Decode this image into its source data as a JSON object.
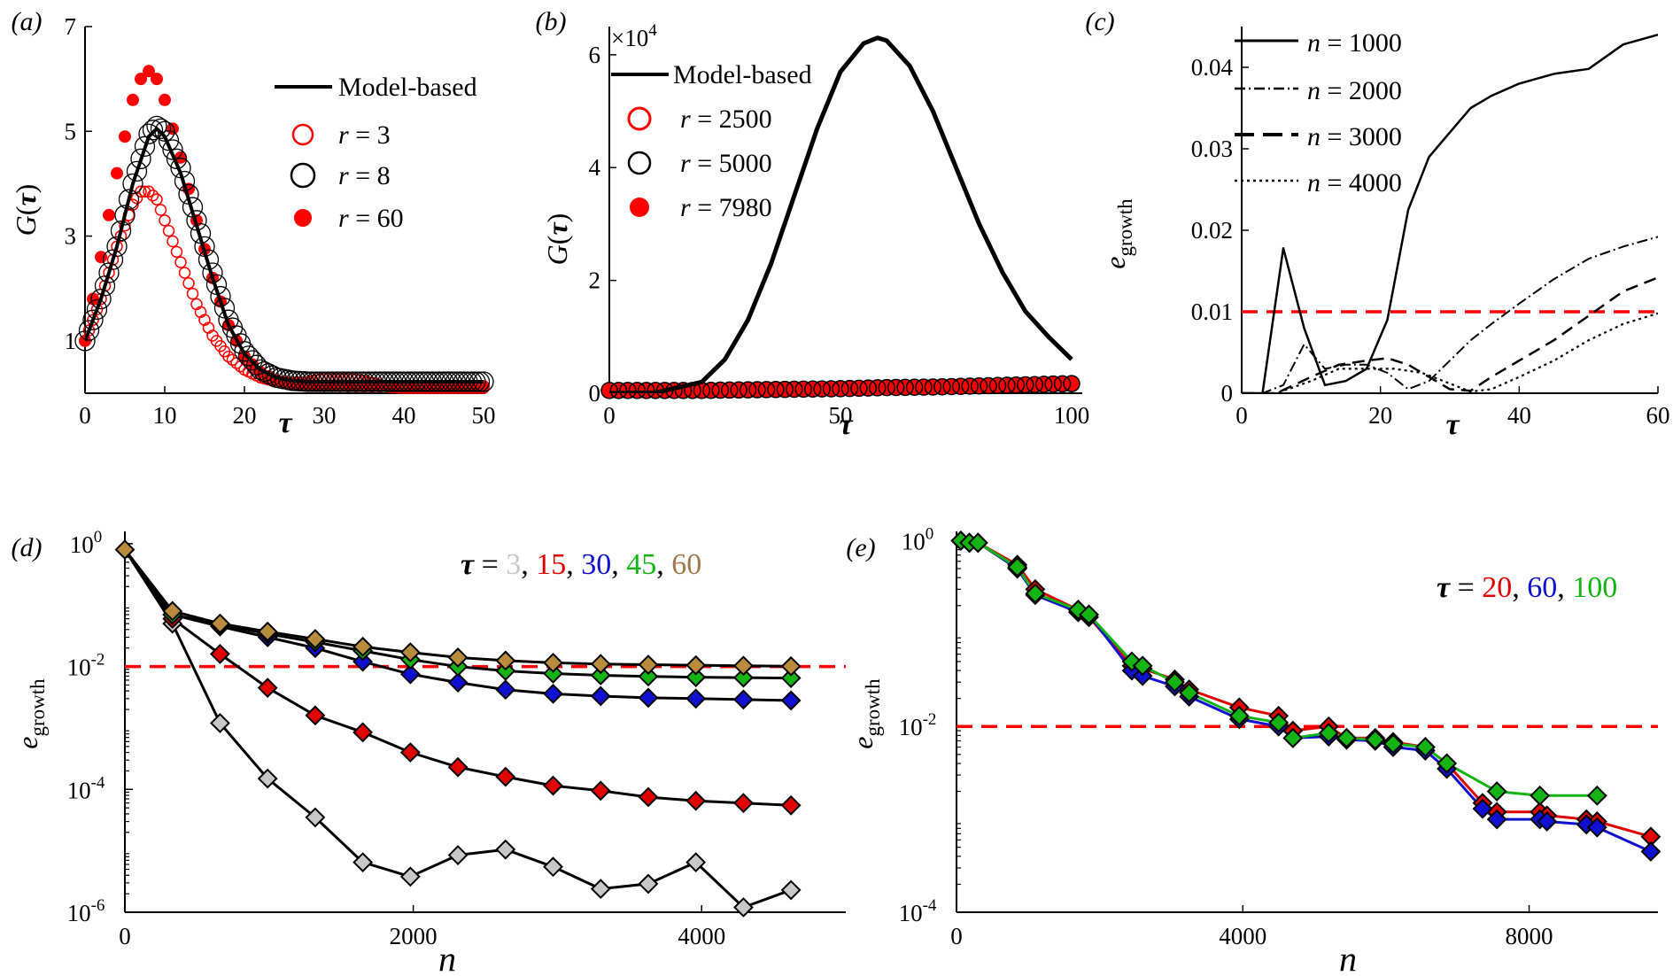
{
  "colors": {
    "black": "#000000",
    "red": "#ff0000",
    "grey": "#c8c8c8",
    "dred": "#e00000",
    "blue": "#1010d0",
    "green": "#14b414",
    "gold": "#b88c3c",
    "tau_gold_label": "#a0784b"
  },
  "chart_data": [
    {
      "id": "a",
      "type": "line",
      "panel_label": "(a)",
      "xlabel": "τ",
      "ylabel": "G(τ)",
      "xlim": [
        0,
        50
      ],
      "ylim": [
        0,
        7
      ],
      "xticks": [
        0,
        10,
        20,
        30,
        40,
        50
      ],
      "xtick_labels": [
        "0",
        "10",
        "20",
        "30",
        "40",
        "50"
      ],
      "yticks": [
        1,
        3,
        5,
        7
      ],
      "ytick_labels": [
        "1",
        "3",
        "5",
        "7"
      ],
      "legend": [
        "Model-based",
        "r = 3",
        "r = 8",
        "r = 60"
      ],
      "series": [
        {
          "name": "Model-based",
          "style": "line",
          "x": [
            0,
            2,
            4,
            6,
            8,
            9,
            10,
            12,
            14,
            16,
            18,
            20,
            22,
            24,
            26,
            28,
            30,
            35,
            40,
            45,
            50
          ],
          "values": [
            1.0,
            1.8,
            2.8,
            4.0,
            4.9,
            5.05,
            4.9,
            4.2,
            3.2,
            2.2,
            1.3,
            0.75,
            0.45,
            0.3,
            0.24,
            0.22,
            0.22,
            0.22,
            0.22,
            0.22,
            0.22
          ]
        },
        {
          "name": "r = 3",
          "style": "open-red",
          "x": [
            0,
            2,
            4,
            6,
            7,
            8,
            9,
            10,
            12,
            14,
            16,
            18,
            20,
            22,
            24,
            26,
            28,
            30,
            32,
            34,
            36,
            38,
            40,
            45,
            50
          ],
          "values": [
            1.0,
            1.8,
            2.8,
            3.6,
            3.85,
            3.85,
            3.7,
            3.3,
            2.5,
            1.7,
            1.1,
            0.7,
            0.45,
            0.3,
            0.22,
            0.2,
            0.22,
            0.28,
            0.3,
            0.27,
            0.2,
            0.12,
            0.1,
            0.1,
            0.1
          ]
        },
        {
          "name": "r = 8",
          "style": "open-black",
          "x": [
            0,
            2,
            4,
            6,
            8,
            9,
            10,
            12,
            14,
            16,
            18,
            20,
            22,
            24,
            26,
            28,
            30,
            35,
            40,
            45,
            50
          ],
          "values": [
            1.0,
            1.8,
            2.8,
            4.0,
            4.95,
            5.1,
            5.0,
            4.3,
            3.3,
            2.3,
            1.4,
            0.8,
            0.45,
            0.3,
            0.24,
            0.22,
            0.22,
            0.22,
            0.22,
            0.22,
            0.22
          ]
        },
        {
          "name": "r = 60",
          "style": "filled-red",
          "x": [
            0,
            2,
            4,
            6,
            7,
            8,
            9,
            10,
            12,
            14,
            16,
            18,
            20,
            22,
            24,
            26,
            28,
            30,
            35,
            40,
            45,
            50
          ],
          "values": [
            1.0,
            2.6,
            4.2,
            5.6,
            6.0,
            6.15,
            6.0,
            5.6,
            4.5,
            3.3,
            2.2,
            1.3,
            0.7,
            0.4,
            0.25,
            0.18,
            0.15,
            0.14,
            0.13,
            0.13,
            0.13,
            0.13
          ]
        }
      ]
    },
    {
      "id": "b",
      "type": "line",
      "panel_label": "(b)",
      "xlabel": "τ",
      "ylabel": "G(τ)",
      "exponent_label": "×10",
      "exponent_power": "4",
      "xlim": [
        0,
        100
      ],
      "ylim": [
        0,
        6.5
      ],
      "xticks": [
        0,
        50,
        100
      ],
      "xtick_labels": [
        "0",
        "50",
        "100"
      ],
      "yticks": [
        0,
        2,
        4,
        6
      ],
      "ytick_labels": [
        "0",
        "2",
        "4",
        "6"
      ],
      "legend": [
        "Model-based",
        "r = 2500",
        "r = 5000",
        "r = 7980"
      ],
      "series": [
        {
          "name": "Model-based",
          "style": "line",
          "x": [
            0,
            10,
            20,
            25,
            30,
            35,
            40,
            45,
            50,
            55,
            58,
            60,
            65,
            70,
            75,
            80,
            85,
            90,
            95,
            100
          ],
          "values": [
            0.0,
            0.01,
            0.2,
            0.6,
            1.3,
            2.3,
            3.5,
            4.7,
            5.7,
            6.2,
            6.3,
            6.25,
            5.8,
            5.0,
            4.0,
            3.0,
            2.15,
            1.45,
            1.0,
            0.6
          ]
        },
        {
          "name": "r = 2500",
          "style": "open-red",
          "x": [
            0,
            10,
            20,
            30,
            40,
            50,
            60,
            70,
            80,
            90,
            100
          ],
          "values": [
            0.05,
            0.05,
            0.05,
            0.06,
            0.07,
            0.08,
            0.1,
            0.11,
            0.13,
            0.15,
            0.17
          ]
        },
        {
          "name": "r = 5000",
          "style": "open-black",
          "x": [
            0,
            10,
            20,
            30,
            40,
            50,
            60,
            70,
            80,
            90,
            100
          ],
          "values": [
            0.05,
            0.05,
            0.05,
            0.06,
            0.07,
            0.08,
            0.1,
            0.11,
            0.13,
            0.15,
            0.17
          ]
        },
        {
          "name": "r = 7980",
          "style": "filled-red",
          "x": [
            0,
            10,
            20,
            30,
            40,
            50,
            60,
            70,
            80,
            90,
            100
          ],
          "values": [
            0.05,
            0.05,
            0.05,
            0.06,
            0.07,
            0.08,
            0.1,
            0.11,
            0.13,
            0.15,
            0.17
          ]
        }
      ]
    },
    {
      "id": "c",
      "type": "line",
      "panel_label": "(c)",
      "xlabel": "τ",
      "ylabel_main": "e",
      "ylabel_sub": "growth",
      "xlim": [
        0,
        60
      ],
      "ylim": [
        0,
        0.045
      ],
      "xticks": [
        0,
        20,
        40,
        60
      ],
      "xtick_labels": [
        "0",
        "20",
        "40",
        "60"
      ],
      "yticks": [
        0,
        0.01,
        0.02,
        0.03,
        0.04
      ],
      "ytick_labels": [
        "0",
        "0.01",
        "0.02",
        "0.03",
        "0.04"
      ],
      "threshold": 0.01,
      "legend": [
        "n = 1000",
        "n = 2000",
        "n = 3000",
        "n = 4000"
      ],
      "series": [
        {
          "name": "n = 1000",
          "dash": "solid",
          "x": [
            0,
            3,
            6,
            9,
            12,
            15,
            18,
            21,
            24,
            27,
            30,
            33,
            36,
            40,
            45,
            50,
            55,
            60
          ],
          "values": [
            0,
            0,
            0.0178,
            0.008,
            0.001,
            0.0015,
            0.003,
            0.009,
            0.0225,
            0.029,
            0.032,
            0.035,
            0.0365,
            0.038,
            0.0392,
            0.0398,
            0.0428,
            0.044
          ]
        },
        {
          "name": "n = 2000",
          "dash": "dashdot",
          "x": [
            0,
            3,
            6,
            9,
            12,
            15,
            18,
            21,
            24,
            27,
            30,
            33,
            36,
            40,
            45,
            50,
            55,
            60
          ],
          "values": [
            0,
            0,
            0.001,
            0.006,
            0.003,
            0.0035,
            0.0035,
            0.0025,
            0.0005,
            0.0015,
            0.004,
            0.0065,
            0.0085,
            0.011,
            0.014,
            0.0165,
            0.018,
            0.0192
          ]
        },
        {
          "name": "n = 3000",
          "dash": "dashed",
          "x": [
            0,
            5,
            10,
            14,
            18,
            21,
            24,
            27,
            30,
            33,
            36,
            40,
            45,
            50,
            55,
            60
          ],
          "values": [
            0,
            0,
            0.002,
            0.0035,
            0.004,
            0.0043,
            0.0035,
            0.002,
            0.0005,
            0.0003,
            0.002,
            0.004,
            0.0065,
            0.0095,
            0.0125,
            0.0142
          ]
        },
        {
          "name": "n = 4000",
          "dash": "dotted",
          "x": [
            0,
            5,
            10,
            14,
            18,
            22,
            26,
            30,
            33,
            36,
            40,
            45,
            50,
            55,
            60
          ],
          "values": [
            0,
            0,
            0.0015,
            0.003,
            0.003,
            0.003,
            0.0025,
            0.0012,
            0.0002,
            0.0005,
            0.002,
            0.004,
            0.0065,
            0.0085,
            0.0098
          ]
        }
      ]
    },
    {
      "id": "d",
      "type": "line",
      "panel_label": "(d)",
      "xlabel": "n",
      "ylabel_main": "e",
      "ylabel_sub": "growth",
      "xlim": [
        0,
        5000
      ],
      "ylog": true,
      "ylim_exp": [
        -6,
        0.2
      ],
      "xticks": [
        0,
        2000,
        4000
      ],
      "xtick_labels": [
        "0",
        "2000",
        "4000"
      ],
      "yticks_exp": [
        0,
        -2,
        -4,
        -6
      ],
      "ytick_base": "10",
      "ytick_exps": [
        "0",
        "-2",
        "-4",
        "-6"
      ],
      "threshold": 0.01,
      "annotation": {
        "prefix": "τ = ",
        "parts": [
          "3",
          ", ",
          "15",
          ", ",
          "30",
          ", ",
          "45",
          ", ",
          "60"
        ]
      },
      "series": [
        {
          "name": "τ = 3",
          "color_key": "grey",
          "x": [
            0,
            330,
            660,
            990,
            1320,
            1650,
            1980,
            2310,
            2640,
            2970,
            3300,
            3630,
            3960,
            4290,
            4620
          ],
          "values": [
            0.8,
            0.05,
            0.0012,
            0.00015,
            3.5e-05,
            6.5e-06,
            3.8e-06,
            8.5e-06,
            1.05e-05,
            5.5e-06,
            2.4e-06,
            2.9e-06,
            6.5e-06,
            1.2e-06,
            2.3e-06
          ]
        },
        {
          "name": "τ = 15",
          "color_key": "dred",
          "x": [
            0,
            330,
            660,
            990,
            1320,
            1650,
            1980,
            2310,
            2640,
            2970,
            3300,
            3630,
            3960,
            4290,
            4620
          ],
          "values": [
            0.8,
            0.06,
            0.016,
            0.0045,
            0.0016,
            0.00085,
            0.0004,
            0.00023,
            0.00016,
            0.000115,
            9.5e-05,
            7.5e-05,
            6.5e-05,
            6e-05,
            5.5e-05
          ]
        },
        {
          "name": "τ = 30",
          "color_key": "blue",
          "x": [
            0,
            330,
            660,
            990,
            1320,
            1650,
            1980,
            2310,
            2640,
            2970,
            3300,
            3630,
            3960,
            4290,
            4620
          ],
          "values": [
            0.8,
            0.07,
            0.045,
            0.03,
            0.02,
            0.012,
            0.0075,
            0.0055,
            0.0042,
            0.0036,
            0.0033,
            0.0031,
            0.003,
            0.0029,
            0.0028
          ]
        },
        {
          "name": "τ = 45",
          "color_key": "green",
          "x": [
            0,
            330,
            660,
            990,
            1320,
            1650,
            1980,
            2310,
            2640,
            2970,
            3300,
            3630,
            3960,
            4290,
            4620
          ],
          "values": [
            0.8,
            0.07,
            0.048,
            0.034,
            0.025,
            0.018,
            0.013,
            0.01,
            0.0085,
            0.0077,
            0.0072,
            0.0069,
            0.0067,
            0.0066,
            0.0065
          ]
        },
        {
          "name": "τ = 60",
          "color_key": "gold",
          "x": [
            0,
            330,
            660,
            990,
            1320,
            1650,
            1980,
            2310,
            2640,
            2970,
            3300,
            3630,
            3960,
            4290,
            4620
          ],
          "values": [
            0.8,
            0.08,
            0.05,
            0.037,
            0.028,
            0.021,
            0.017,
            0.014,
            0.0125,
            0.0115,
            0.011,
            0.0107,
            0.0105,
            0.0103,
            0.0101
          ]
        }
      ]
    },
    {
      "id": "e",
      "type": "line",
      "panel_label": "(e)",
      "xlabel": "n",
      "ylabel_main": "e",
      "ylabel_sub": "growth",
      "xlim": [
        0,
        9800
      ],
      "ylog": true,
      "ylim_exp": [
        -4,
        0.1
      ],
      "xticks": [
        0,
        4000,
        8000
      ],
      "xtick_labels": [
        "0",
        "4000",
        "8000"
      ],
      "yticks_exp": [
        0,
        -2,
        -4
      ],
      "ytick_base": "10",
      "ytick_exps": [
        "0",
        "-2",
        "-4"
      ],
      "threshold": 0.01,
      "annotation": {
        "prefix": "τ = ",
        "parts": [
          "20",
          ", ",
          "60",
          ", ",
          "100"
        ]
      },
      "series": [
        {
          "name": "τ = 20",
          "color_key": "dred",
          "x": [
            60,
            180,
            300,
            850,
            1100,
            1700,
            1850,
            2450,
            2600,
            3050,
            3250,
            3950,
            4500,
            4700,
            5200,
            5450,
            5850,
            6100,
            6550,
            6850,
            7350,
            7550,
            8150,
            8250,
            8800,
            8950,
            9700
          ],
          "values": [
            1.0,
            0.95,
            0.95,
            0.55,
            0.3,
            0.18,
            0.15,
            0.045,
            0.042,
            0.032,
            0.025,
            0.016,
            0.013,
            0.009,
            0.01,
            0.0075,
            0.0075,
            0.0068,
            0.006,
            0.004,
            0.0015,
            0.0012,
            0.0012,
            0.0011,
            0.001,
            0.00095,
            0.00065
          ]
        },
        {
          "name": "τ = 60",
          "color_key": "blue",
          "x": [
            60,
            180,
            300,
            850,
            1100,
            1700,
            1850,
            2450,
            2600,
            3050,
            3250,
            3950,
            4500,
            4700,
            5200,
            5450,
            5850,
            6100,
            6550,
            6850,
            7350,
            7550,
            8150,
            8250,
            8800,
            8950,
            9700
          ],
          "values": [
            1.0,
            0.95,
            0.95,
            0.5,
            0.26,
            0.17,
            0.16,
            0.04,
            0.035,
            0.027,
            0.021,
            0.012,
            0.01,
            0.0075,
            0.0078,
            0.0072,
            0.007,
            0.006,
            0.0055,
            0.0035,
            0.0013,
            0.001,
            0.001,
            0.00095,
            0.00088,
            0.00082,
            0.00045
          ]
        },
        {
          "name": "τ = 100",
          "color_key": "green",
          "x": [
            60,
            180,
            300,
            850,
            1100,
            1700,
            1850,
            2450,
            2600,
            3050,
            3250,
            3950,
            4500,
            4700,
            5200,
            5450,
            5850,
            6100,
            6550,
            6850,
            7550,
            8150,
            8950
          ],
          "values": [
            1.0,
            0.95,
            0.95,
            0.52,
            0.27,
            0.18,
            0.16,
            0.05,
            0.045,
            0.03,
            0.023,
            0.013,
            0.011,
            0.0075,
            0.0085,
            0.0075,
            0.0072,
            0.0065,
            0.006,
            0.004,
            0.002,
            0.0018,
            0.0018
          ]
        }
      ]
    }
  ]
}
